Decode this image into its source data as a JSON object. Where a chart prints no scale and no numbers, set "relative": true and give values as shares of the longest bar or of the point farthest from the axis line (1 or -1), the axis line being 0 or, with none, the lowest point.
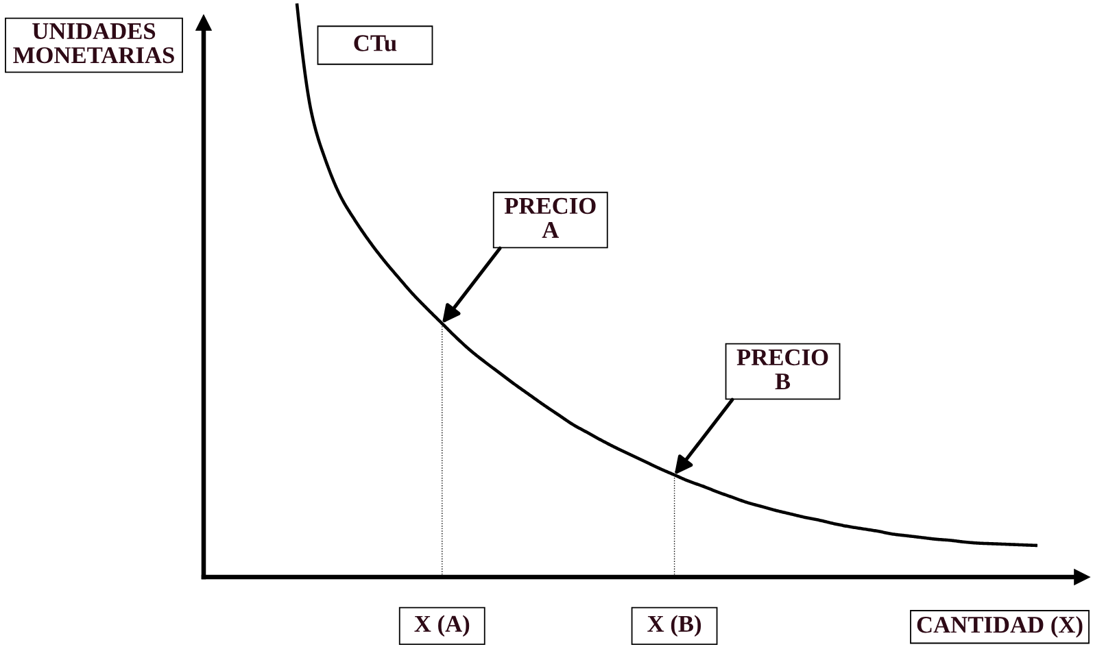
{
  "chart_data": {
    "type": "line",
    "relative": true,
    "xlabel": "CANTIDAD (X)",
    "ylabel": "UNIDADES MONETARIAS",
    "categories": [
      null,
      null,
      null,
      null,
      null,
      null,
      null,
      null,
      null,
      null,
      "X (A)",
      null,
      null,
      null,
      null,
      null,
      null,
      null,
      null,
      null,
      null,
      null,
      null,
      null,
      null,
      null,
      "X (B)",
      null,
      null,
      null,
      null,
      null,
      null,
      null,
      null,
      null,
      null,
      null,
      null,
      null,
      null,
      null,
      null,
      null,
      null,
      null,
      null,
      null,
      null,
      null,
      null,
      null
    ],
    "series": [
      {
        "name": "CTu",
        "color": "#000000",
        "values": [
          1.0,
          0.81,
          0.725,
          0.664,
          0.622,
          0.585,
          0.552,
          0.522,
          0.493,
          0.467,
          0.442,
          0.417,
          0.394,
          0.374,
          0.355,
          0.336,
          0.318,
          0.3,
          0.283,
          0.266,
          0.252,
          0.238,
          0.225,
          0.213,
          0.201,
          0.189,
          0.178,
          0.167,
          0.158,
          0.148,
          0.139,
          0.13,
          0.123,
          0.116,
          0.11,
          0.104,
          0.099,
          0.093,
          0.088,
          0.084,
          0.08,
          0.075,
          0.072,
          0.069,
          0.066,
          0.064,
          0.061,
          0.059,
          0.058,
          0.057,
          0.056,
          0.055
        ]
      }
    ],
    "annotations": [
      {
        "text": "PRECIO A",
        "x": "X (A)",
        "y": 0.442
      },
      {
        "text": "PRECIO B",
        "x": "X (B)",
        "y": 0.178
      }
    ],
    "ref_lines": [
      {
        "axis": "x",
        "value": "X (A)",
        "line_style": "dotted",
        "color": "#000000"
      },
      {
        "axis": "x",
        "value": "X (B)",
        "line_style": "dotted",
        "color": "#000000"
      }
    ]
  }
}
